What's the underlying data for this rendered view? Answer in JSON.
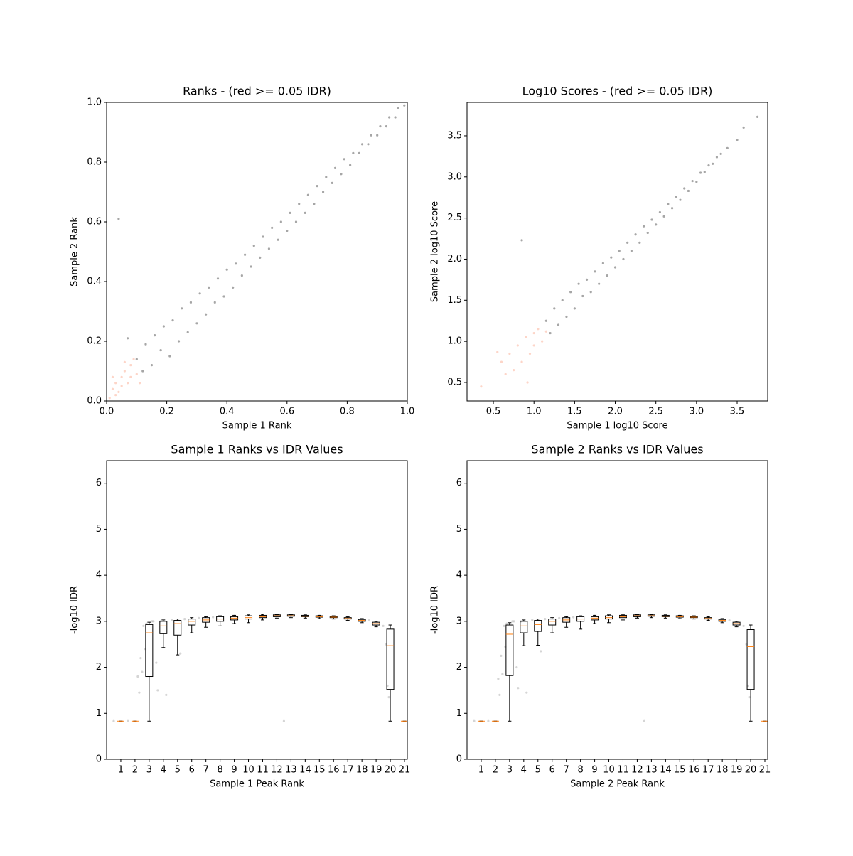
{
  "chart_data": [
    {
      "type": "scatter",
      "title": "Ranks - (red >= 0.05 IDR)",
      "xlabel": "Sample 1 Rank",
      "ylabel": "Sample 2 Rank",
      "xlim": [
        0,
        1
      ],
      "ylim": [
        0,
        1
      ],
      "xticks": [
        {
          "value": 0,
          "label": "0.0"
        },
        0.2,
        0.4,
        0.6,
        0.8,
        {
          "value": 1,
          "label": "1.0"
        }
      ],
      "yticks": [
        {
          "value": 0,
          "label": "0.0"
        },
        0.2,
        0.4,
        0.6,
        0.8,
        {
          "value": 1,
          "label": "1.0"
        }
      ],
      "series": [
        {
          "color": "#000000",
          "x": [
            0.1,
            0.12,
            0.13,
            0.15,
            0.16,
            0.18,
            0.19,
            0.21,
            0.22,
            0.24,
            0.25,
            0.27,
            0.28,
            0.3,
            0.31,
            0.33,
            0.34,
            0.36,
            0.37,
            0.39,
            0.4,
            0.42,
            0.43,
            0.45,
            0.46,
            0.48,
            0.49,
            0.51,
            0.52,
            0.54,
            0.55,
            0.57,
            0.58,
            0.6,
            0.61,
            0.63,
            0.64,
            0.66,
            0.67,
            0.69,
            0.7,
            0.72,
            0.73,
            0.75,
            0.76,
            0.78,
            0.79,
            0.81,
            0.82,
            0.84,
            0.85,
            0.87,
            0.88,
            0.9,
            0.91,
            0.93,
            0.94,
            0.96,
            0.97,
            0.99,
            0.04,
            0.07
          ],
          "y": [
            0.14,
            0.1,
            0.19,
            0.12,
            0.22,
            0.17,
            0.25,
            0.15,
            0.27,
            0.2,
            0.31,
            0.23,
            0.33,
            0.26,
            0.36,
            0.29,
            0.38,
            0.33,
            0.41,
            0.35,
            0.44,
            0.38,
            0.46,
            0.42,
            0.49,
            0.45,
            0.52,
            0.48,
            0.55,
            0.51,
            0.58,
            0.54,
            0.6,
            0.57,
            0.63,
            0.6,
            0.66,
            0.63,
            0.69,
            0.66,
            0.72,
            0.7,
            0.75,
            0.73,
            0.78,
            0.76,
            0.81,
            0.79,
            0.83,
            0.83,
            0.86,
            0.86,
            0.89,
            0.89,
            0.92,
            0.92,
            0.95,
            0.95,
            0.98,
            0.99,
            0.61,
            0.21
          ]
        },
        {
          "color": "#fcb39a",
          "x": [
            0.01,
            0.02,
            0.03,
            0.03,
            0.04,
            0.05,
            0.05,
            0.06,
            0.07,
            0.08,
            0.08,
            0.09,
            0.1,
            0.11,
            0.06,
            0.02
          ],
          "y": [
            0.01,
            0.04,
            0.02,
            0.06,
            0.03,
            0.08,
            0.05,
            0.1,
            0.06,
            0.12,
            0.08,
            0.14,
            0.09,
            0.06,
            0.13,
            0.08
          ]
        }
      ]
    },
    {
      "type": "scatter",
      "title": "Log10 Scores - (red >= 0.05 IDR)",
      "xlabel": "Sample 1 log10 Score",
      "ylabel": "Sample 2 log10 Score",
      "xlim": [
        0.176,
        3.876
      ],
      "ylim": [
        0.275,
        3.906
      ],
      "xticks": [
        0.5,
        {
          "value": 1,
          "label": "1.0"
        },
        1.5,
        {
          "value": 2,
          "label": "2.0"
        },
        2.5,
        {
          "value": 3,
          "label": "3.0"
        },
        3.5
      ],
      "yticks": [
        0.5,
        {
          "value": 1,
          "label": "1.0"
        },
        1.5,
        {
          "value": 2,
          "label": "2.0"
        },
        2.5,
        {
          "value": 3,
          "label": "3.0"
        },
        3.5
      ],
      "series": [
        {
          "color": "#000000",
          "x": [
            1.15,
            1.2,
            1.25,
            1.3,
            1.35,
            1.4,
            1.45,
            1.5,
            1.55,
            1.6,
            1.65,
            1.7,
            1.75,
            1.8,
            1.85,
            1.9,
            1.95,
            2.0,
            2.05,
            2.1,
            2.15,
            2.2,
            2.25,
            2.3,
            2.35,
            2.4,
            2.45,
            2.5,
            2.55,
            2.6,
            2.65,
            2.7,
            2.75,
            2.8,
            2.85,
            2.9,
            2.95,
            3.0,
            3.05,
            3.1,
            3.15,
            3.2,
            3.25,
            3.3,
            3.38,
            3.5,
            3.58,
            3.75,
            0.85
          ],
          "y": [
            1.25,
            1.1,
            1.4,
            1.2,
            1.5,
            1.3,
            1.6,
            1.4,
            1.7,
            1.55,
            1.75,
            1.6,
            1.85,
            1.7,
            1.95,
            1.8,
            2.02,
            1.9,
            2.1,
            2.0,
            2.2,
            2.1,
            2.3,
            2.2,
            2.4,
            2.32,
            2.48,
            2.42,
            2.57,
            2.52,
            2.67,
            2.62,
            2.76,
            2.72,
            2.86,
            2.83,
            2.95,
            2.94,
            3.05,
            3.06,
            3.14,
            3.16,
            3.24,
            3.28,
            3.35,
            3.45,
            3.6,
            3.73,
            2.23
          ]
        },
        {
          "color": "#fcb39a",
          "x": [
            0.35,
            0.6,
            0.65,
            0.7,
            0.75,
            0.8,
            0.85,
            0.9,
            0.95,
            1.0,
            1.0,
            1.05,
            1.1,
            1.15,
            0.92,
            0.55
          ],
          "y": [
            0.45,
            0.75,
            0.6,
            0.85,
            0.65,
            0.95,
            0.75,
            1.05,
            0.85,
            1.1,
            0.95,
            1.15,
            1.0,
            1.12,
            0.5,
            0.87
          ]
        }
      ]
    },
    {
      "type": "box",
      "title": "Sample 1 Ranks vs IDR Values",
      "xlabel": "Sample 1 Peak Rank",
      "ylabel": "-log10 IDR",
      "xlim": [
        0,
        21.2
      ],
      "ylim": [
        0,
        6.49
      ],
      "xticks": [
        1,
        2,
        3,
        4,
        5,
        6,
        7,
        8,
        9,
        10,
        11,
        12,
        13,
        14,
        15,
        16,
        17,
        18,
        19,
        20,
        21
      ],
      "yticks": [
        0,
        1,
        2,
        3,
        4,
        5,
        6
      ],
      "color": "#000000",
      "median_color": "#ff7f0e",
      "whislo": [
        0.83,
        0.83,
        0.83,
        2.43,
        2.27,
        2.75,
        2.87,
        2.9,
        2.95,
        2.97,
        3.03,
        3.07,
        3.08,
        3.07,
        3.06,
        3.05,
        3.02,
        2.97,
        2.88,
        0.83,
        0.83
      ],
      "q1": [
        0.83,
        0.83,
        1.8,
        2.73,
        2.7,
        2.92,
        2.98,
        3.0,
        3.03,
        3.05,
        3.08,
        3.1,
        3.11,
        3.1,
        3.09,
        3.08,
        3.05,
        3.0,
        2.92,
        1.52,
        0.83
      ],
      "med": [
        0.83,
        0.83,
        2.75,
        2.9,
        2.95,
        3.0,
        3.03,
        3.05,
        3.07,
        3.08,
        3.1,
        3.12,
        3.12,
        3.11,
        3.1,
        3.09,
        3.06,
        3.02,
        2.95,
        2.47,
        0.83
      ],
      "q3": [
        0.83,
        0.83,
        2.93,
        3.0,
        3.02,
        3.05,
        3.08,
        3.1,
        3.1,
        3.12,
        3.13,
        3.14,
        3.14,
        3.13,
        3.12,
        3.1,
        3.08,
        3.04,
        2.98,
        2.83,
        0.83
      ],
      "whishi": [
        0.83,
        0.83,
        2.98,
        3.03,
        3.05,
        3.08,
        3.1,
        3.12,
        3.13,
        3.14,
        3.15,
        3.15,
        3.15,
        3.14,
        3.13,
        3.12,
        3.1,
        3.06,
        3.0,
        2.92,
        0.83
      ],
      "points": {
        "color": "#888888",
        "x": [
          0.5,
          1.5,
          2.3,
          2.5,
          2.6,
          2.7,
          2.8,
          3.2,
          3.5,
          3.8,
          4.2,
          4.6,
          5.5,
          6.5,
          7.5,
          9,
          11,
          13,
          15,
          17,
          18.5,
          19.5,
          19.7,
          19.8,
          19.9,
          2.2,
          2.4,
          3.3,
          3.6,
          5.2,
          12.5
        ],
        "y": [
          0.83,
          0.83,
          1.45,
          1.9,
          2.9,
          2.4,
          2.95,
          3.0,
          2.1,
          3.0,
          1.4,
          3.03,
          3.05,
          3.07,
          3.09,
          3.12,
          3.14,
          3.14,
          3.12,
          3.08,
          3.02,
          2.9,
          2.5,
          1.6,
          1.35,
          1.8,
          2.2,
          3.0,
          1.5,
          2.3,
          0.83
        ]
      }
    },
    {
      "type": "box",
      "title": "Sample 2 Ranks vs IDR Values",
      "xlabel": "Sample 2 Peak Rank",
      "ylabel": "-log10 IDR",
      "xlim": [
        0,
        21.2
      ],
      "ylim": [
        0,
        6.49
      ],
      "xticks": [
        1,
        2,
        3,
        4,
        5,
        6,
        7,
        8,
        9,
        10,
        11,
        12,
        13,
        14,
        15,
        16,
        17,
        18,
        19,
        20,
        21
      ],
      "yticks": [
        0,
        1,
        2,
        3,
        4,
        5,
        6
      ],
      "color": "#000000",
      "median_color": "#ff7f0e",
      "whislo": [
        0.83,
        0.83,
        0.83,
        2.47,
        2.48,
        2.75,
        2.87,
        2.83,
        2.95,
        2.97,
        3.03,
        3.07,
        3.08,
        3.07,
        3.06,
        3.05,
        3.02,
        2.97,
        2.88,
        0.83,
        0.83
      ],
      "q1": [
        0.83,
        0.83,
        1.82,
        2.75,
        2.78,
        2.92,
        2.98,
        3.0,
        3.03,
        3.05,
        3.08,
        3.1,
        3.11,
        3.1,
        3.09,
        3.08,
        3.05,
        3.0,
        2.92,
        1.52,
        0.83
      ],
      "med": [
        0.83,
        0.83,
        2.72,
        2.9,
        2.93,
        3.0,
        3.03,
        3.05,
        3.07,
        3.08,
        3.1,
        3.12,
        3.12,
        3.11,
        3.1,
        3.09,
        3.06,
        3.02,
        2.95,
        2.45,
        0.83
      ],
      "q3": [
        0.83,
        0.83,
        2.92,
        3.0,
        3.02,
        3.05,
        3.08,
        3.1,
        3.1,
        3.12,
        3.13,
        3.14,
        3.14,
        3.13,
        3.12,
        3.1,
        3.08,
        3.04,
        2.98,
        2.82,
        0.83
      ],
      "whishi": [
        0.83,
        0.83,
        2.97,
        3.03,
        3.05,
        3.08,
        3.1,
        3.12,
        3.13,
        3.14,
        3.15,
        3.15,
        3.15,
        3.14,
        3.13,
        3.12,
        3.1,
        3.06,
        3.0,
        2.92,
        0.83
      ],
      "points": {
        "color": "#888888",
        "x": [
          0.5,
          1.5,
          2.3,
          2.5,
          2.6,
          2.7,
          2.8,
          3.2,
          3.5,
          3.8,
          4.2,
          4.6,
          5.5,
          6.5,
          7.5,
          9,
          11,
          13,
          15,
          17,
          18.5,
          19.5,
          19.7,
          19.8,
          19.9,
          2.2,
          2.4,
          3.3,
          3.6,
          5.2,
          12.5
        ],
        "y": [
          0.83,
          0.83,
          1.4,
          1.85,
          2.9,
          2.45,
          2.95,
          3.0,
          2.0,
          3.0,
          1.45,
          3.03,
          3.05,
          3.07,
          3.09,
          3.12,
          3.14,
          3.14,
          3.12,
          3.08,
          3.02,
          2.9,
          2.5,
          1.6,
          1.35,
          1.75,
          2.25,
          3.0,
          1.55,
          2.35,
          0.83
        ]
      }
    }
  ]
}
